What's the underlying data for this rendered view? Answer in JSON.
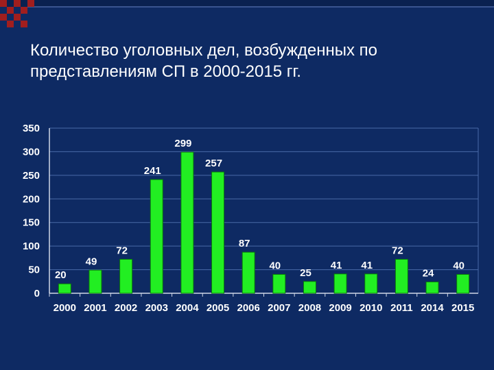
{
  "slide": {
    "title": "Количество уголовных дел, возбужденных по представлениям СП в 2000-2015 гг."
  },
  "colors": {
    "background": "#0e2a63",
    "bar": "#22ee22",
    "bar_edge": "#0a7a0a",
    "grid": "#4a6aa8",
    "text": "#ffffff",
    "decoration": "#a11e1e"
  },
  "chart_data": {
    "type": "bar",
    "categories": [
      "2000",
      "2001",
      "2002",
      "2003",
      "2004",
      "2005",
      "2006",
      "2007",
      "2008",
      "2009",
      "2010",
      "2011",
      "2014",
      "2015"
    ],
    "values": [
      20,
      49,
      72,
      241,
      299,
      257,
      87,
      40,
      25,
      41,
      41,
      72,
      24,
      40
    ],
    "ylim": [
      0,
      350
    ],
    "yticks": [
      0,
      50,
      100,
      150,
      200,
      250,
      300,
      350
    ],
    "grid": true,
    "data_labels": true,
    "legend": false
  }
}
